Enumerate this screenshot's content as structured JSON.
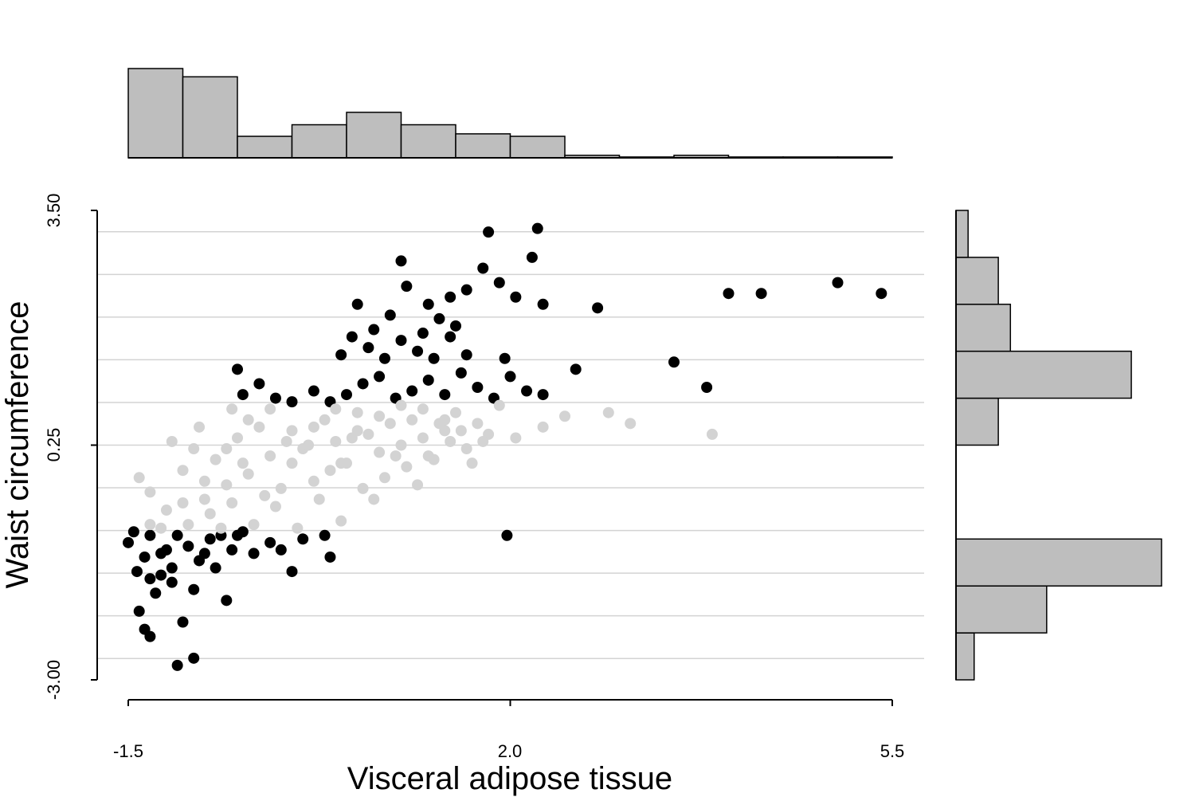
{
  "chart_data": {
    "type": "scatter",
    "title": "",
    "xlabel": "Visceral adipose tissue",
    "ylabel": "Waist circumference",
    "xlim": [
      -1.5,
      5.5
    ],
    "ylim": [
      -3.0,
      3.5
    ],
    "x_ticks": [
      "-1.5",
      "2.0",
      "5.5"
    ],
    "y_ticks": [
      "-3.00",
      "0.25",
      "3.50"
    ],
    "grid": "horizontal",
    "colors": {
      "high_low": "#000000",
      "middle": "#d3d3d3",
      "hist_fill": "#bebebe"
    },
    "series": [
      {
        "group": "high_low",
        "color": "#000000",
        "points": [
          [
            -1.5,
            -1.1
          ],
          [
            -1.35,
            -1.3
          ],
          [
            -1.2,
            -1.25
          ],
          [
            -1.42,
            -1.5
          ],
          [
            -1.3,
            -1.6
          ],
          [
            -1.1,
            -1.45
          ],
          [
            -1.25,
            -1.8
          ],
          [
            -1.4,
            -2.05
          ],
          [
            -1.35,
            -2.3
          ],
          [
            -1.15,
            -1.2
          ],
          [
            -1.05,
            -1.0
          ],
          [
            -0.95,
            -1.15
          ],
          [
            -0.85,
            -1.35
          ],
          [
            -0.75,
            -1.05
          ],
          [
            -0.65,
            -1.0
          ],
          [
            -0.55,
            -1.2
          ],
          [
            -0.45,
            -0.95
          ],
          [
            -0.35,
            -1.25
          ],
          [
            -0.2,
            -1.1
          ],
          [
            -0.1,
            -1.2
          ],
          [
            0.0,
            -1.5
          ],
          [
            0.1,
            -1.05
          ],
          [
            -1.45,
            -0.95
          ],
          [
            -1.3,
            -1.0
          ],
          [
            -1.2,
            -1.55
          ],
          [
            -0.7,
            -1.45
          ],
          [
            -0.6,
            -1.9
          ],
          [
            -0.9,
            -1.75
          ],
          [
            -1.0,
            -2.2
          ],
          [
            -1.3,
            -2.4
          ],
          [
            -1.05,
            -2.8
          ],
          [
            -0.9,
            -2.7
          ],
          [
            0.35,
            -1.3
          ],
          [
            0.3,
            -1.0
          ],
          [
            -0.8,
            -1.25
          ],
          [
            -1.1,
            -1.65
          ],
          [
            -0.5,
            -1.0
          ],
          [
            1.97,
            -1.0
          ],
          [
            -0.5,
            1.3
          ],
          [
            -0.45,
            0.95
          ],
          [
            -0.3,
            1.1
          ],
          [
            -0.15,
            0.9
          ],
          [
            0.0,
            0.85
          ],
          [
            0.2,
            1.0
          ],
          [
            0.35,
            0.85
          ],
          [
            0.5,
            0.95
          ],
          [
            0.65,
            1.1
          ],
          [
            0.8,
            1.2
          ],
          [
            0.95,
            0.9
          ],
          [
            1.1,
            1.0
          ],
          [
            1.25,
            1.15
          ],
          [
            1.4,
            0.95
          ],
          [
            1.55,
            1.25
          ],
          [
            1.7,
            1.05
          ],
          [
            1.85,
            0.9
          ],
          [
            2.0,
            1.2
          ],
          [
            2.15,
            1.0
          ],
          [
            2.3,
            0.95
          ],
          [
            0.7,
            1.6
          ],
          [
            0.85,
            1.45
          ],
          [
            1.0,
            1.7
          ],
          [
            1.15,
            1.55
          ],
          [
            1.3,
            1.45
          ],
          [
            1.45,
            1.75
          ],
          [
            1.6,
            1.5
          ],
          [
            0.9,
            2.05
          ],
          [
            1.05,
            2.45
          ],
          [
            1.25,
            2.2
          ],
          [
            1.45,
            2.3
          ],
          [
            1.6,
            2.4
          ],
          [
            1.75,
            2.7
          ],
          [
            1.9,
            2.5
          ],
          [
            2.05,
            2.3
          ],
          [
            2.2,
            2.85
          ],
          [
            2.3,
            2.2
          ],
          [
            0.45,
            1.5
          ],
          [
            0.55,
            1.75
          ],
          [
            0.75,
            1.85
          ],
          [
            1.35,
            2.0
          ],
          [
            1.5,
            1.9
          ],
          [
            1.2,
            1.8
          ],
          [
            2.6,
            1.3
          ],
          [
            3.5,
            1.4
          ],
          [
            3.8,
            1.05
          ],
          [
            4.0,
            2.35
          ],
          [
            4.3,
            2.35
          ],
          [
            5.0,
            2.5
          ],
          [
            5.4,
            2.35
          ],
          [
            2.8,
            2.15
          ],
          [
            2.25,
            3.25
          ],
          [
            1.8,
            3.2
          ],
          [
            1.0,
            2.8
          ],
          [
            0.6,
            2.2
          ],
          [
            1.95,
            1.45
          ]
        ]
      },
      {
        "group": "middle",
        "color": "#d3d3d3",
        "points": [
          [
            -1.4,
            -0.2
          ],
          [
            -1.3,
            -0.4
          ],
          [
            -1.15,
            -0.65
          ],
          [
            -1.0,
            -0.1
          ],
          [
            -0.9,
            0.2
          ],
          [
            -0.8,
            -0.5
          ],
          [
            -0.7,
            0.05
          ],
          [
            -0.6,
            -0.3
          ],
          [
            -0.5,
            0.35
          ],
          [
            -0.4,
            -0.15
          ],
          [
            -0.3,
            0.5
          ],
          [
            -0.2,
            0.1
          ],
          [
            -0.1,
            -0.35
          ],
          [
            0.0,
            0.45
          ],
          [
            0.1,
            0.2
          ],
          [
            0.2,
            -0.25
          ],
          [
            0.3,
            0.6
          ],
          [
            0.4,
            0.3
          ],
          [
            0.5,
            0.0
          ],
          [
            0.6,
            0.7
          ],
          [
            0.7,
            0.4
          ],
          [
            0.8,
            0.15
          ],
          [
            0.9,
            0.55
          ],
          [
            1.0,
            0.25
          ],
          [
            1.1,
            0.6
          ],
          [
            1.2,
            0.35
          ],
          [
            1.3,
            0.05
          ],
          [
            1.4,
            0.45
          ],
          [
            1.5,
            0.7
          ],
          [
            1.6,
            0.2
          ],
          [
            1.7,
            0.55
          ],
          [
            1.8,
            0.4
          ],
          [
            2.05,
            0.35
          ],
          [
            2.3,
            0.5
          ],
          [
            2.5,
            0.65
          ],
          [
            2.9,
            0.7
          ],
          [
            3.1,
            0.55
          ],
          [
            3.85,
            0.4
          ],
          [
            -1.1,
            0.3
          ],
          [
            -0.95,
            -0.85
          ],
          [
            -0.75,
            -0.7
          ],
          [
            -0.55,
            -0.55
          ],
          [
            -0.35,
            -0.85
          ],
          [
            -0.15,
            -0.6
          ],
          [
            0.05,
            -0.9
          ],
          [
            0.25,
            -0.5
          ],
          [
            0.45,
            -0.8
          ],
          [
            0.65,
            -0.35
          ],
          [
            0.85,
            -0.2
          ],
          [
            1.05,
            -0.05
          ],
          [
            1.25,
            0.1
          ],
          [
            1.45,
            0.3
          ],
          [
            1.65,
            0.0
          ],
          [
            -1.2,
            -0.9
          ],
          [
            -1.0,
            -0.55
          ],
          [
            -0.8,
            -0.25
          ],
          [
            -0.6,
            0.2
          ],
          [
            -0.4,
            0.6
          ],
          [
            -0.2,
            0.75
          ],
          [
            0.0,
            0.0
          ],
          [
            0.2,
            0.5
          ],
          [
            0.4,
            0.75
          ],
          [
            0.6,
            0.45
          ],
          [
            0.8,
            0.65
          ],
          [
            1.0,
            0.8
          ],
          [
            1.2,
            0.75
          ],
          [
            1.4,
            0.6
          ],
          [
            -0.65,
            -0.9
          ],
          [
            -0.45,
            0.0
          ],
          [
            -0.25,
            -0.45
          ],
          [
            0.15,
            0.25
          ],
          [
            0.35,
            -0.1
          ],
          [
            0.55,
            0.35
          ],
          [
            0.75,
            -0.5
          ],
          [
            0.95,
            0.1
          ],
          [
            1.15,
            -0.3
          ],
          [
            1.35,
            0.55
          ],
          [
            1.55,
            0.45
          ],
          [
            1.75,
            0.3
          ],
          [
            -1.3,
            -0.85
          ],
          [
            -0.85,
            0.5
          ],
          [
            -0.55,
            0.75
          ],
          [
            -0.05,
            0.3
          ],
          [
            0.45,
            0.0
          ],
          [
            1.9,
            0.8
          ]
        ]
      }
    ],
    "x_histogram": {
      "bins": [
        -1.5,
        -1.0,
        -0.5,
        0.0,
        0.5,
        1.0,
        1.5,
        2.0,
        2.5,
        3.0,
        3.5,
        4.0,
        4.5,
        5.0,
        5.5
      ],
      "counts": [
        108,
        98,
        26,
        40,
        55,
        40,
        29,
        26,
        3,
        1,
        3,
        1,
        1,
        1
      ]
    },
    "y_histogram": {
      "bins": [
        -3.0,
        -2.35,
        -1.7,
        -1.05,
        -0.4,
        0.25,
        0.9,
        1.55,
        2.2,
        2.85,
        3.5
      ],
      "counts": [
        3,
        15,
        34,
        0,
        0,
        7,
        29,
        9,
        7,
        2
      ]
    }
  }
}
